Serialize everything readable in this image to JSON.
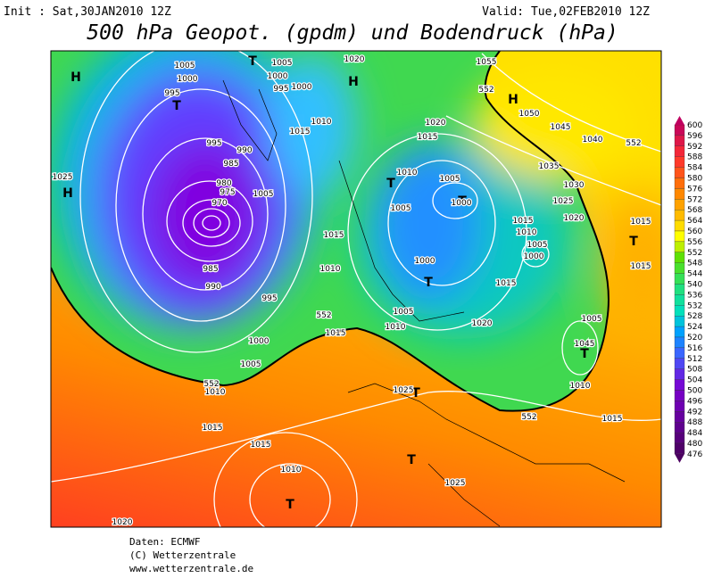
{
  "header": {
    "init": "Init : Sat,30JAN2010 12Z",
    "valid": "Valid: Tue,02FEB2010 12Z",
    "title": "500 hPa Geopot. (gpdm) und Bodendruck (hPa)"
  },
  "legend": {
    "values": [
      600,
      596,
      592,
      588,
      584,
      580,
      576,
      572,
      568,
      564,
      560,
      556,
      552,
      548,
      544,
      540,
      536,
      532,
      528,
      524,
      520,
      516,
      512,
      508,
      504,
      500,
      496,
      492,
      488,
      484,
      480,
      476
    ]
  },
  "map_labels": [
    "H",
    "H",
    "H",
    "H",
    "T",
    "T",
    "T",
    "T",
    "T",
    "T",
    "T",
    "T",
    "T",
    "T",
    "1005",
    "1000",
    "995",
    "995",
    "990",
    "985",
    "980",
    "975",
    "970",
    "1005",
    "1000",
    "995",
    "1000",
    "1020",
    "1055",
    "552",
    "1050",
    "1045",
    "1040",
    "552",
    "1035",
    "1030",
    "1025",
    "1020",
    "1015",
    "1015",
    "1025",
    "1010",
    "1015",
    "1020",
    "1015",
    "1010",
    "1005",
    "1000",
    "1005",
    "1005",
    "1015",
    "1010",
    "1015",
    "1010",
    "1005",
    "1000",
    "1000",
    "985",
    "990",
    "995",
    "1015",
    "1005",
    "1010",
    "552",
    "1015",
    "1020",
    "1005",
    "1045",
    "1000",
    "1005",
    "1010",
    "552",
    "1025",
    "1010",
    "552",
    "1015",
    "1015",
    "1015",
    "1010",
    "1025",
    "1020"
  ],
  "footer": [
    "Daten: ECMWF",
    "(C) Wetterzentrale",
    "www.wetterzentrale.de"
  ]
}
